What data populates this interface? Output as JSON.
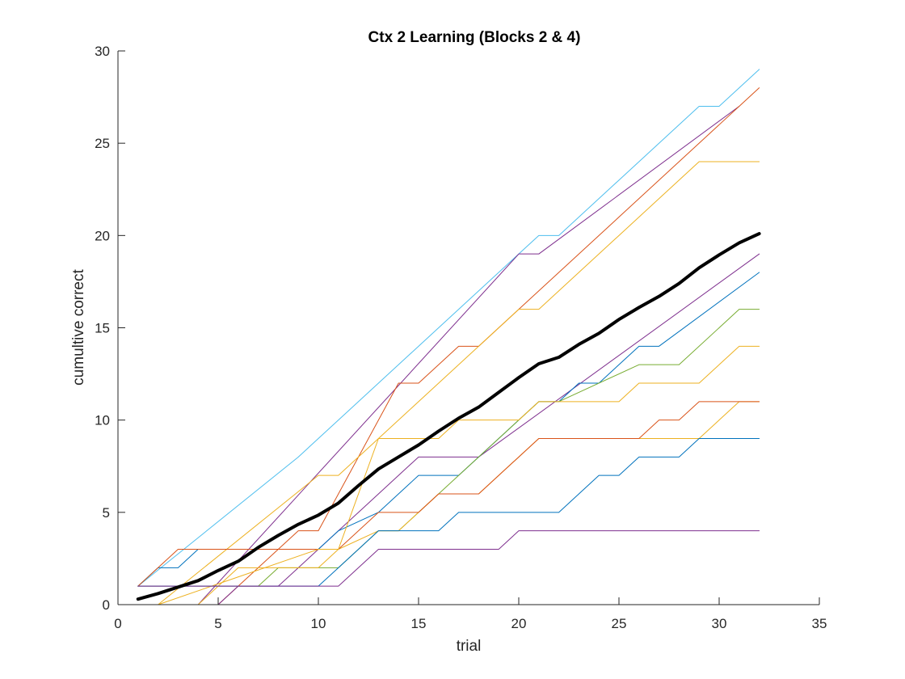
{
  "chart_data": {
    "type": "line",
    "title": "Ctx 2 Learning (Blocks 2 & 4)",
    "xlabel": "trial",
    "ylabel": "cumultive correct",
    "xlim": [
      0,
      35
    ],
    "ylim": [
      0,
      30
    ],
    "xticks": [
      0,
      5,
      10,
      15,
      20,
      25,
      30,
      35
    ],
    "yticks": [
      0,
      5,
      10,
      15,
      20,
      25,
      30
    ],
    "grid": false,
    "legend": "none",
    "series": [
      {
        "color": "#4DBEEE",
        "width": 1,
        "x": [
          1,
          9,
          21,
          22,
          29,
          30,
          32
        ],
        "y": [
          1,
          8,
          20,
          20,
          27,
          27,
          29
        ]
      },
      {
        "color": "#7E2F8E",
        "width": 1,
        "x": [
          1,
          2,
          3,
          4,
          20,
          21,
          31
        ],
        "y": [
          0,
          0,
          0,
          0,
          19,
          19,
          27
        ]
      },
      {
        "color": "#D95319",
        "width": 1,
        "x": [
          1,
          3,
          4,
          5,
          6,
          9,
          10,
          14,
          15,
          17,
          18,
          32
        ],
        "y": [
          0,
          0,
          0,
          0,
          1,
          4,
          4,
          12,
          12,
          14,
          14,
          28
        ]
      },
      {
        "color": "#EDB120",
        "width": 1,
        "x": [
          1,
          2,
          10,
          11,
          20,
          21,
          29,
          32
        ],
        "y": [
          0,
          0,
          7,
          7,
          16,
          16,
          24,
          24
        ]
      },
      {
        "color": "#7E2F8E",
        "width": 1,
        "x": [
          1,
          4,
          5,
          6,
          8,
          9,
          10,
          11,
          12,
          15,
          16,
          17,
          18,
          32
        ],
        "y": [
          0,
          0,
          0,
          1,
          1,
          2,
          3,
          4,
          5,
          8,
          8,
          8,
          8,
          19
        ]
      },
      {
        "color": "#0072BD",
        "width": 1,
        "x": [
          1,
          2,
          3,
          4,
          5,
          6,
          7,
          8,
          9,
          10,
          11,
          13,
          14,
          15,
          16,
          17,
          18,
          21,
          22,
          23,
          24,
          26,
          27,
          32
        ],
        "y": [
          1,
          2,
          2,
          3,
          3,
          3,
          3,
          3,
          3,
          3,
          4,
          5,
          6,
          7,
          7,
          7,
          8,
          11,
          11,
          12,
          12,
          14,
          14,
          18
        ]
      },
      {
        "color": "#77AC30",
        "width": 1,
        "x": [
          1,
          6,
          7,
          8,
          9,
          11,
          13,
          14,
          20,
          21,
          22,
          26,
          28,
          31,
          32
        ],
        "y": [
          1,
          1,
          1,
          2,
          2,
          2,
          4,
          4,
          10,
          11,
          11,
          13,
          13,
          16,
          16
        ]
      },
      {
        "color": "#EDB120",
        "width": 1,
        "x": [
          1,
          2,
          3,
          4,
          5,
          6,
          7,
          8,
          9,
          10,
          11,
          13,
          14,
          15,
          16,
          17,
          18,
          19,
          20,
          21,
          22,
          23,
          24,
          25,
          26,
          27,
          28,
          29,
          31,
          32
        ],
        "y": [
          0,
          0,
          0,
          0,
          1,
          2,
          2,
          2,
          2,
          2,
          3,
          4,
          4,
          5,
          6,
          6,
          6,
          7,
          8,
          9,
          9,
          9,
          9,
          9,
          9,
          9,
          9,
          9,
          11,
          11
        ]
      },
      {
        "color": "#D95319",
        "width": 1,
        "x": [
          1,
          3,
          9,
          10,
          11,
          13,
          14,
          15,
          16,
          17,
          18,
          21,
          26,
          27,
          28,
          29,
          32
        ],
        "y": [
          1,
          3,
          3,
          3,
          3,
          5,
          5,
          5,
          6,
          6,
          6,
          9,
          9,
          10,
          10,
          11,
          11
        ]
      },
      {
        "color": "#EDB120",
        "width": 1,
        "x": [
          1,
          2,
          10,
          11,
          13,
          15,
          16,
          17,
          20,
          21,
          25,
          26,
          29,
          31,
          32
        ],
        "y": [
          0,
          0,
          3,
          3,
          9,
          9,
          9,
          10,
          10,
          11,
          11,
          12,
          12,
          14,
          14
        ]
      },
      {
        "color": "#0072BD",
        "width": 1,
        "x": [
          1,
          3,
          4,
          10,
          11,
          12,
          13,
          16,
          17,
          22,
          24,
          25,
          26,
          28,
          29,
          32
        ],
        "y": [
          1,
          1,
          1,
          1,
          2,
          3,
          4,
          4,
          5,
          5,
          7,
          7,
          8,
          8,
          9,
          9
        ]
      },
      {
        "color": "#7E2F8E",
        "width": 1,
        "x": [
          1,
          11,
          13,
          19,
          20,
          32
        ],
        "y": [
          1,
          1,
          3,
          3,
          4,
          4
        ]
      },
      {
        "color": "#000000",
        "width": 4,
        "x": [
          1,
          2,
          3,
          4,
          5,
          6,
          7,
          8,
          9,
          10,
          11,
          12,
          13,
          14,
          15,
          16,
          17,
          18,
          19,
          20,
          21,
          22,
          23,
          24,
          25,
          26,
          27,
          28,
          29,
          30,
          31,
          32
        ],
        "y": [
          0.3,
          0.6,
          0.95,
          1.3,
          1.85,
          2.35,
          3.1,
          3.75,
          4.35,
          4.85,
          5.5,
          6.45,
          7.35,
          8.0,
          8.65,
          9.4,
          10.1,
          10.7,
          11.5,
          12.3,
          13.05,
          13.4,
          14.1,
          14.7,
          15.45,
          16.1,
          16.7,
          17.4,
          18.25,
          18.95,
          19.6,
          20.1
        ]
      }
    ]
  }
}
